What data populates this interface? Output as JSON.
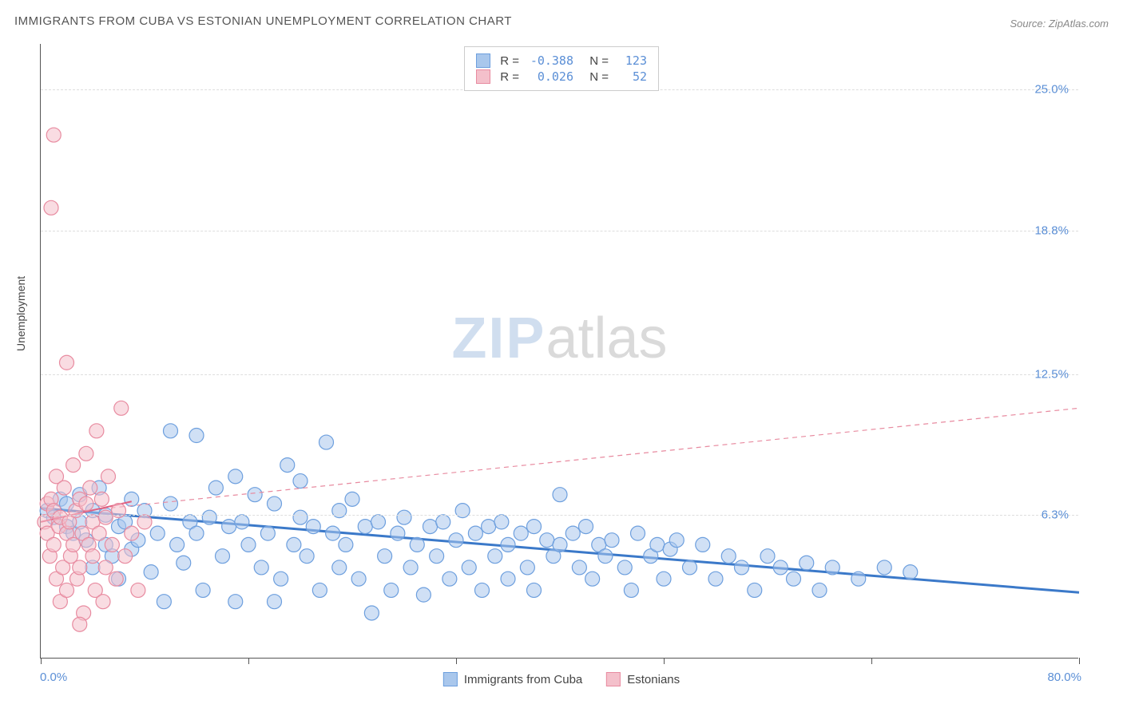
{
  "title": "IMMIGRANTS FROM CUBA VS ESTONIAN UNEMPLOYMENT CORRELATION CHART",
  "source": "Source: ZipAtlas.com",
  "watermark": {
    "part1": "ZIP",
    "part2": "atlas"
  },
  "y_axis_title": "Unemployment",
  "chart": {
    "type": "scatter",
    "xlim": [
      0,
      80
    ],
    "ylim": [
      0,
      27
    ],
    "x_tick_positions": [
      0,
      16,
      32,
      48,
      64,
      80
    ],
    "y_gridlines": [
      6.3,
      12.5,
      18.8,
      25.0
    ],
    "y_right_labels": [
      "6.3%",
      "12.5%",
      "18.8%",
      "25.0%"
    ],
    "x_left_label": "0.0%",
    "x_right_label": "80.0%",
    "grid_color": "#dddddd",
    "axis_color": "#555555",
    "background_color": "#ffffff",
    "marker_radius": 9,
    "marker_opacity": 0.55,
    "series": [
      {
        "name": "Immigrants from Cuba",
        "fill": "#a9c7ec",
        "stroke": "#6d9fde",
        "R": "-0.388",
        "N": "123",
        "trend": {
          "x1": 0,
          "y1": 6.6,
          "x2": 80,
          "y2": 2.9,
          "color": "#3b79c9",
          "width": 3,
          "dash": "none"
        },
        "points": [
          [
            0.5,
            6.5
          ],
          [
            1,
            6.2
          ],
          [
            1.5,
            7.0
          ],
          [
            2,
            5.8
          ],
          [
            2,
            6.8
          ],
          [
            2.5,
            5.5
          ],
          [
            3,
            7.2
          ],
          [
            3,
            6.0
          ],
          [
            3.5,
            5.2
          ],
          [
            4,
            6.5
          ],
          [
            4,
            4.0
          ],
          [
            4.5,
            7.5
          ],
          [
            5,
            5.0
          ],
          [
            5,
            6.3
          ],
          [
            5.5,
            4.5
          ],
          [
            6,
            5.8
          ],
          [
            6,
            3.5
          ],
          [
            6.5,
            6.0
          ],
          [
            7,
            4.8
          ],
          [
            7,
            7.0
          ],
          [
            7.5,
            5.2
          ],
          [
            8,
            6.5
          ],
          [
            8.5,
            3.8
          ],
          [
            9,
            5.5
          ],
          [
            9.5,
            2.5
          ],
          [
            10,
            6.8
          ],
          [
            10,
            10.0
          ],
          [
            10.5,
            5.0
          ],
          [
            11,
            4.2
          ],
          [
            11.5,
            6.0
          ],
          [
            12,
            9.8
          ],
          [
            12,
            5.5
          ],
          [
            12.5,
            3.0
          ],
          [
            13,
            6.2
          ],
          [
            13.5,
            7.5
          ],
          [
            14,
            4.5
          ],
          [
            14.5,
            5.8
          ],
          [
            15,
            8.0
          ],
          [
            15,
            2.5
          ],
          [
            15.5,
            6.0
          ],
          [
            16,
            5.0
          ],
          [
            16.5,
            7.2
          ],
          [
            17,
            4.0
          ],
          [
            17.5,
            5.5
          ],
          [
            18,
            6.8
          ],
          [
            18,
            2.5
          ],
          [
            18.5,
            3.5
          ],
          [
            19,
            8.5
          ],
          [
            19.5,
            5.0
          ],
          [
            20,
            6.2
          ],
          [
            20,
            7.8
          ],
          [
            20.5,
            4.5
          ],
          [
            21,
            5.8
          ],
          [
            21.5,
            3.0
          ],
          [
            22,
            9.5
          ],
          [
            22.5,
            5.5
          ],
          [
            23,
            6.5
          ],
          [
            23,
            4.0
          ],
          [
            23.5,
            5.0
          ],
          [
            24,
            7.0
          ],
          [
            24.5,
            3.5
          ],
          [
            25,
            5.8
          ],
          [
            25.5,
            2.0
          ],
          [
            26,
            6.0
          ],
          [
            26.5,
            4.5
          ],
          [
            27,
            3.0
          ],
          [
            27.5,
            5.5
          ],
          [
            28,
            6.2
          ],
          [
            28.5,
            4.0
          ],
          [
            29,
            5.0
          ],
          [
            29.5,
            2.8
          ],
          [
            30,
            5.8
          ],
          [
            30.5,
            4.5
          ],
          [
            31,
            6.0
          ],
          [
            31.5,
            3.5
          ],
          [
            32,
            5.2
          ],
          [
            32.5,
            6.5
          ],
          [
            33,
            4.0
          ],
          [
            33.5,
            5.5
          ],
          [
            34,
            3.0
          ],
          [
            34.5,
            5.8
          ],
          [
            35,
            4.5
          ],
          [
            35.5,
            6.0
          ],
          [
            36,
            5.0
          ],
          [
            36,
            3.5
          ],
          [
            37,
            5.5
          ],
          [
            37.5,
            4.0
          ],
          [
            38,
            5.8
          ],
          [
            38,
            3.0
          ],
          [
            39,
            5.2
          ],
          [
            39.5,
            4.5
          ],
          [
            40,
            5.0
          ],
          [
            40,
            7.2
          ],
          [
            41,
            5.5
          ],
          [
            41.5,
            4.0
          ],
          [
            42,
            5.8
          ],
          [
            42.5,
            3.5
          ],
          [
            43,
            5.0
          ],
          [
            43.5,
            4.5
          ],
          [
            44,
            5.2
          ],
          [
            45,
            4.0
          ],
          [
            45.5,
            3.0
          ],
          [
            46,
            5.5
          ],
          [
            47,
            4.5
          ],
          [
            47.5,
            5.0
          ],
          [
            48,
            3.5
          ],
          [
            48.5,
            4.8
          ],
          [
            49,
            5.2
          ],
          [
            50,
            4.0
          ],
          [
            51,
            5.0
          ],
          [
            52,
            3.5
          ],
          [
            53,
            4.5
          ],
          [
            54,
            4.0
          ],
          [
            55,
            3.0
          ],
          [
            56,
            4.5
          ],
          [
            57,
            4.0
          ],
          [
            58,
            3.5
          ],
          [
            59,
            4.2
          ],
          [
            60,
            3.0
          ],
          [
            61,
            4.0
          ],
          [
            63,
            3.5
          ],
          [
            65,
            4.0
          ],
          [
            67,
            3.8
          ]
        ]
      },
      {
        "name": "Estonians",
        "fill": "#f4c0cb",
        "stroke": "#e88ba0",
        "R": "0.026",
        "N": "52",
        "trend": {
          "x1": 0,
          "y1": 6.3,
          "x2": 80,
          "y2": 11.0,
          "color": "#e88ba0",
          "width": 1.2,
          "dash": "6 5"
        },
        "trend_solid": {
          "x1": 0,
          "y1": 6.0,
          "x2": 7,
          "y2": 6.9,
          "color": "#e06080",
          "width": 2
        },
        "points": [
          [
            0.3,
            6.0
          ],
          [
            0.5,
            5.5
          ],
          [
            0.5,
            6.8
          ],
          [
            0.7,
            4.5
          ],
          [
            0.8,
            7.0
          ],
          [
            1.0,
            5.0
          ],
          [
            1.0,
            6.5
          ],
          [
            1.2,
            3.5
          ],
          [
            1.2,
            8.0
          ],
          [
            1.4,
            5.8
          ],
          [
            1.5,
            2.5
          ],
          [
            1.5,
            6.2
          ],
          [
            1.7,
            4.0
          ],
          [
            1.8,
            7.5
          ],
          [
            2.0,
            5.5
          ],
          [
            2.0,
            3.0
          ],
          [
            2.2,
            6.0
          ],
          [
            2.3,
            4.5
          ],
          [
            2.5,
            8.5
          ],
          [
            2.5,
            5.0
          ],
          [
            2.7,
            6.5
          ],
          [
            2.8,
            3.5
          ],
          [
            3.0,
            7.0
          ],
          [
            3.0,
            4.0
          ],
          [
            3.2,
            5.5
          ],
          [
            3.3,
            2.0
          ],
          [
            3.5,
            6.8
          ],
          [
            3.5,
            9.0
          ],
          [
            3.7,
            5.0
          ],
          [
            3.8,
            7.5
          ],
          [
            4.0,
            4.5
          ],
          [
            4.0,
            6.0
          ],
          [
            4.2,
            3.0
          ],
          [
            4.3,
            10.0
          ],
          [
            4.5,
            5.5
          ],
          [
            4.7,
            7.0
          ],
          [
            4.8,
            2.5
          ],
          [
            5.0,
            6.2
          ],
          [
            5.0,
            4.0
          ],
          [
            5.2,
            8.0
          ],
          [
            5.5,
            5.0
          ],
          [
            5.8,
            3.5
          ],
          [
            6.0,
            6.5
          ],
          [
            6.2,
            11.0
          ],
          [
            6.5,
            4.5
          ],
          [
            7.0,
            5.5
          ],
          [
            7.5,
            3.0
          ],
          [
            8.0,
            6.0
          ],
          [
            2.0,
            13.0
          ],
          [
            1.0,
            23.0
          ],
          [
            0.8,
            19.8
          ],
          [
            3.0,
            1.5
          ]
        ]
      }
    ]
  }
}
